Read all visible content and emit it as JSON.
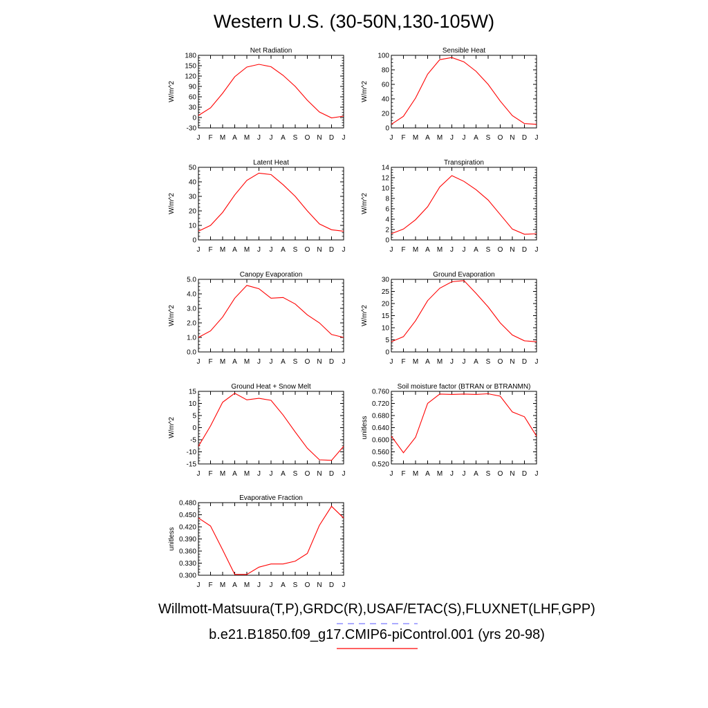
{
  "title": "Western U.S. (30-50N,130-105W)",
  "footer": {
    "obs_label": "Willmott-Matsuura(T,P),GRDC(R),USAF/ETAC(S),FLUXNET(LHF,GPP)",
    "model_label": "b.e21.B1850.f09_g17.CMIP6-piControl.001 (yrs 20-98)",
    "obs_line_color": "#7777ff",
    "model_line_color": "#ff0000"
  },
  "chart_data": [
    {
      "type": "line",
      "title": "Net Radiation",
      "ylabel": "W/m^2",
      "xlabel": "",
      "categories": [
        "J",
        "F",
        "M",
        "A",
        "M",
        "J",
        "J",
        "A",
        "S",
        "O",
        "N",
        "D",
        "J"
      ],
      "ylim": [
        -30,
        180
      ],
      "yticks": [
        "-30",
        "0",
        "30",
        "60",
        "90",
        "120",
        "150",
        "180"
      ],
      "series": [
        {
          "color": "#ff0000",
          "values": [
            6,
            28,
            70,
            118,
            146,
            154,
            147,
            122,
            90,
            50,
            16,
            -1,
            4
          ]
        }
      ]
    },
    {
      "type": "line",
      "title": "Sensible Heat",
      "ylabel": "W/m^2",
      "xlabel": "",
      "categories": [
        "J",
        "F",
        "M",
        "A",
        "M",
        "J",
        "J",
        "A",
        "S",
        "O",
        "N",
        "D",
        "J"
      ],
      "ylim": [
        0,
        100
      ],
      "yticks": [
        "0",
        "20",
        "40",
        "60",
        "80",
        "100"
      ],
      "series": [
        {
          "color": "#ff0000",
          "values": [
            5,
            16,
            41,
            74,
            94,
            97,
            91,
            78,
            60,
            37,
            17,
            6,
            5
          ]
        }
      ]
    },
    {
      "type": "line",
      "title": "Latent Heat",
      "ylabel": "W/m^2",
      "xlabel": "",
      "categories": [
        "J",
        "F",
        "M",
        "A",
        "M",
        "J",
        "J",
        "A",
        "S",
        "O",
        "N",
        "D",
        "J"
      ],
      "ylim": [
        0,
        50
      ],
      "yticks": [
        "0",
        "10",
        "20",
        "30",
        "40",
        "50"
      ],
      "series": [
        {
          "color": "#ff0000",
          "values": [
            6,
            10,
            19,
            31,
            41,
            46,
            45,
            38,
            30,
            20,
            11,
            7,
            6
          ]
        }
      ]
    },
    {
      "type": "line",
      "title": "Transpiration",
      "ylabel": "W/m^2",
      "xlabel": "",
      "categories": [
        "J",
        "F",
        "M",
        "A",
        "M",
        "J",
        "J",
        "A",
        "S",
        "O",
        "N",
        "D",
        "J"
      ],
      "ylim": [
        0,
        14
      ],
      "yticks": [
        "0",
        "2",
        "4",
        "6",
        "8",
        "10",
        "12",
        "14"
      ],
      "series": [
        {
          "color": "#ff0000",
          "values": [
            1.2,
            2.1,
            3.9,
            6.4,
            10.2,
            12.4,
            11.3,
            9.7,
            7.7,
            4.9,
            2.1,
            1.1,
            1.2
          ]
        }
      ]
    },
    {
      "type": "line",
      "title": "Canopy Evaporation",
      "ylabel": "W/m^2",
      "xlabel": "",
      "categories": [
        "J",
        "F",
        "M",
        "A",
        "M",
        "J",
        "J",
        "A",
        "S",
        "O",
        "N",
        "D",
        "J"
      ],
      "ylim": [
        0,
        5
      ],
      "yticks": [
        "0.0",
        "1.0",
        "2.0",
        "3.0",
        "4.0",
        "5.0"
      ],
      "series": [
        {
          "color": "#ff0000",
          "values": [
            1.0,
            1.45,
            2.4,
            3.7,
            4.58,
            4.35,
            3.7,
            3.75,
            3.3,
            2.55,
            2.0,
            1.2,
            1.0
          ]
        }
      ]
    },
    {
      "type": "line",
      "title": "Ground Evaporation",
      "ylabel": "W/m^2",
      "xlabel": "",
      "categories": [
        "J",
        "F",
        "M",
        "A",
        "M",
        "J",
        "J",
        "A",
        "S",
        "O",
        "N",
        "D",
        "J"
      ],
      "ylim": [
        0,
        30
      ],
      "yticks": [
        "0",
        "5",
        "10",
        "15",
        "20",
        "25",
        "30"
      ],
      "series": [
        {
          "color": "#ff0000",
          "values": [
            4.2,
            6.3,
            12.9,
            21.2,
            26.3,
            29.0,
            29.5,
            24.2,
            18.6,
            12.0,
            7.0,
            4.6,
            4.2
          ]
        }
      ]
    },
    {
      "type": "line",
      "title": "Ground Heat + Snow Melt",
      "ylabel": "W/m^2",
      "xlabel": "",
      "categories": [
        "J",
        "F",
        "M",
        "A",
        "M",
        "J",
        "J",
        "A",
        "S",
        "O",
        "N",
        "D",
        "J"
      ],
      "ylim": [
        -15,
        15
      ],
      "yticks": [
        "-15",
        "-10",
        "-5",
        "0",
        "5",
        "10",
        "15"
      ],
      "series": [
        {
          "color": "#ff0000",
          "values": [
            -7.7,
            0.7,
            10.5,
            14.2,
            11.5,
            12.1,
            11.3,
            5.2,
            -1.8,
            -8.5,
            -13.3,
            -13.5,
            -7.7
          ]
        }
      ]
    },
    {
      "type": "line",
      "title": "Soil moisture factor (BTRAN or BTRANMN)",
      "ylabel": "unitless",
      "xlabel": "",
      "categories": [
        "J",
        "F",
        "M",
        "A",
        "M",
        "J",
        "J",
        "A",
        "S",
        "O",
        "N",
        "D",
        "J"
      ],
      "ylim": [
        0.52,
        0.76
      ],
      "yticks": [
        "0.520",
        "0.560",
        "0.600",
        "0.640",
        "0.680",
        "0.720",
        "0.760"
      ],
      "series": [
        {
          "color": "#ff0000",
          "values": [
            0.612,
            0.557,
            0.608,
            0.72,
            0.751,
            0.75,
            0.751,
            0.75,
            0.752,
            0.744,
            0.692,
            0.676,
            0.612
          ]
        }
      ]
    },
    {
      "type": "line",
      "title": "Evaporative Fraction",
      "ylabel": "unitless",
      "xlabel": "",
      "categories": [
        "J",
        "F",
        "M",
        "A",
        "M",
        "J",
        "J",
        "A",
        "S",
        "O",
        "N",
        "D",
        "J"
      ],
      "ylim": [
        0.3,
        0.48
      ],
      "yticks": [
        "0.300",
        "0.330",
        "0.360",
        "0.390",
        "0.420",
        "0.450",
        "0.480"
      ],
      "series": [
        {
          "color": "#ff0000",
          "values": [
            0.442,
            0.422,
            0.363,
            0.302,
            0.302,
            0.32,
            0.328,
            0.328,
            0.335,
            0.354,
            0.424,
            0.471,
            0.442
          ]
        }
      ]
    }
  ]
}
